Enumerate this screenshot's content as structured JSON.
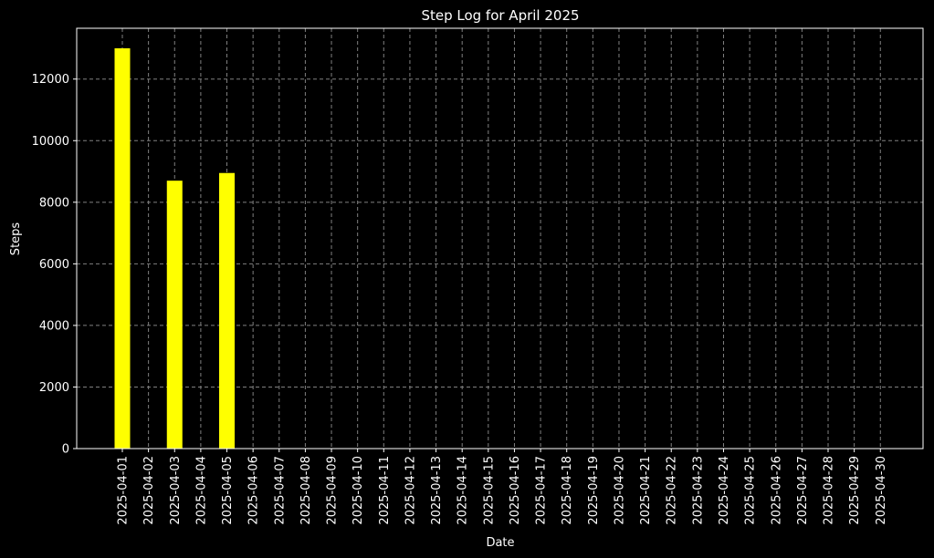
{
  "chart_data": {
    "type": "bar",
    "title": "Step Log for April 2025",
    "xlabel": "Date",
    "ylabel": "Steps",
    "categories": [
      "2025-04-01",
      "2025-04-02",
      "2025-04-03",
      "2025-04-04",
      "2025-04-05",
      "2025-04-06",
      "2025-04-07",
      "2025-04-08",
      "2025-04-09",
      "2025-04-10",
      "2025-04-11",
      "2025-04-12",
      "2025-04-13",
      "2025-04-14",
      "2025-04-15",
      "2025-04-16",
      "2025-04-17",
      "2025-04-18",
      "2025-04-19",
      "2025-04-20",
      "2025-04-21",
      "2025-04-22",
      "2025-04-23",
      "2025-04-24",
      "2025-04-25",
      "2025-04-26",
      "2025-04-27",
      "2025-04-28",
      "2025-04-29",
      "2025-04-30"
    ],
    "values": [
      13000,
      0,
      8700,
      0,
      8950,
      0,
      0,
      0,
      0,
      0,
      0,
      0,
      0,
      0,
      0,
      0,
      0,
      0,
      0,
      0,
      0,
      0,
      0,
      0,
      0,
      0,
      0,
      0,
      0,
      0
    ],
    "ylim": [
      0,
      13650
    ],
    "yticks": [
      0,
      2000,
      4000,
      6000,
      8000,
      10000,
      12000
    ],
    "grid": true,
    "colors": {
      "background": "#000000",
      "bar": "#ffff00",
      "axes": "#ffffff",
      "grid": "#808080",
      "text": "#ffffff"
    }
  }
}
